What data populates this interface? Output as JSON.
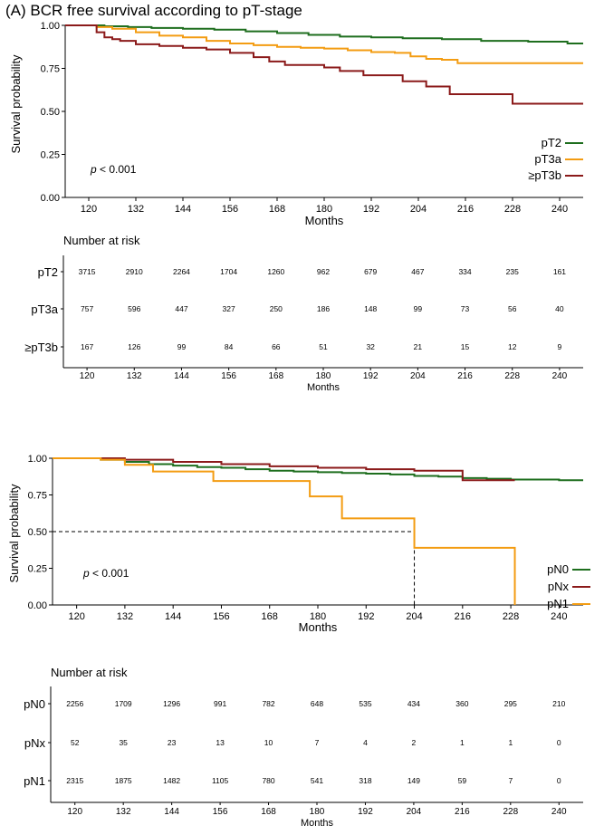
{
  "figure_title": "(A) BCR free survival according to pT-stage",
  "chart_data": [
    {
      "type": "line",
      "step": true,
      "xlabel": "Months",
      "ylabel": "Survival probability",
      "xlim": [
        114,
        246
      ],
      "xticks": [
        120,
        132,
        144,
        156,
        168,
        180,
        192,
        204,
        216,
        228,
        240
      ],
      "ylim": [
        0,
        1
      ],
      "yticks": [
        "0.00",
        "0.25",
        "0.50",
        "0.75",
        "1.00"
      ],
      "annotation": {
        "p_symbol": "p",
        "p_text": " < 0.001"
      },
      "legend_position": "bottom-right",
      "series": [
        {
          "name": "pT2",
          "color": "#1e6e1e",
          "x": [
            114,
            120,
            124,
            130,
            136,
            144,
            152,
            160,
            168,
            176,
            184,
            192,
            200,
            210,
            220,
            232,
            242,
            246
          ],
          "y": [
            1.0,
            1.0,
            0.995,
            0.99,
            0.985,
            0.98,
            0.975,
            0.965,
            0.955,
            0.945,
            0.935,
            0.93,
            0.925,
            0.92,
            0.91,
            0.905,
            0.895,
            0.895
          ]
        },
        {
          "name": "pT3a",
          "color": "#f39c12",
          "x": [
            114,
            120,
            122,
            126,
            132,
            138,
            144,
            150,
            156,
            162,
            168,
            174,
            180,
            186,
            192,
            198,
            202,
            206,
            210,
            214,
            246
          ],
          "y": [
            1.0,
            1.0,
            0.99,
            0.98,
            0.96,
            0.94,
            0.93,
            0.91,
            0.895,
            0.885,
            0.875,
            0.87,
            0.865,
            0.855,
            0.845,
            0.84,
            0.82,
            0.805,
            0.8,
            0.78,
            0.78
          ]
        },
        {
          "name": "≥pT3b",
          "color": "#8b1a1a",
          "x": [
            114,
            120,
            122,
            124,
            126,
            128,
            132,
            138,
            144,
            150,
            156,
            162,
            166,
            170,
            180,
            184,
            190,
            200,
            206,
            212,
            228,
            246
          ],
          "y": [
            1.0,
            1.0,
            0.96,
            0.93,
            0.92,
            0.91,
            0.89,
            0.88,
            0.87,
            0.86,
            0.84,
            0.815,
            0.79,
            0.77,
            0.755,
            0.735,
            0.71,
            0.675,
            0.645,
            0.6,
            0.545,
            0.545
          ]
        }
      ],
      "risk_table": {
        "title": "Number at risk",
        "xlabel": "Months",
        "rows": [
          {
            "label": "pT2",
            "values": [
              "3715",
              "2910",
              "2264",
              "1704",
              "1260",
              "962",
              "679",
              "467",
              "334",
              "235",
              "161"
            ]
          },
          {
            "label": "pT3a",
            "values": [
              "757",
              "596",
              "447",
              "327",
              "250",
              "186",
              "148",
              "99",
              "73",
              "56",
              "40"
            ]
          },
          {
            "label": "≥pT3b",
            "values": [
              "167",
              "126",
              "99",
              "84",
              "66",
              "51",
              "32",
              "21",
              "15",
              "12",
              "9"
            ]
          }
        ]
      }
    },
    {
      "type": "line",
      "step": true,
      "xlabel": "Months",
      "ylabel": "Survival probability",
      "xlim": [
        114,
        246
      ],
      "xticks": [
        120,
        132,
        144,
        156,
        168,
        180,
        192,
        204,
        216,
        228,
        240
      ],
      "ylim": [
        0,
        1
      ],
      "yticks": [
        "0.00",
        "0.25",
        "0.50",
        "0.75",
        "1.00"
      ],
      "annotation": {
        "p_symbol": "p",
        "p_text": " < 0.001"
      },
      "legend_position": "bottom-right",
      "median_line": {
        "y": 0.5,
        "x": 204
      },
      "series": [
        {
          "name": "pN0",
          "color": "#1e6e1e",
          "x": [
            114,
            120,
            126,
            132,
            138,
            144,
            150,
            156,
            162,
            168,
            174,
            180,
            186,
            192,
            198,
            204,
            210,
            216,
            222,
            228,
            234,
            240,
            246
          ],
          "y": [
            1.0,
            1.0,
            0.99,
            0.975,
            0.96,
            0.95,
            0.94,
            0.935,
            0.925,
            0.915,
            0.91,
            0.905,
            0.9,
            0.895,
            0.89,
            0.88,
            0.875,
            0.865,
            0.86,
            0.855,
            0.855,
            0.85,
            0.85
          ]
        },
        {
          "name": "pNx",
          "color": "#8b1a1a",
          "x": [
            114,
            120,
            132,
            144,
            156,
            168,
            180,
            192,
            204,
            216,
            229
          ],
          "y": [
            1.0,
            1.0,
            0.99,
            0.975,
            0.96,
            0.945,
            0.935,
            0.925,
            0.915,
            0.85,
            0.85
          ]
        },
        {
          "name": "pN1",
          "color": "#f39c12",
          "x": [
            114,
            120,
            126,
            132,
            139,
            154,
            178,
            186,
            204,
            229
          ],
          "y": [
            1.0,
            1.0,
            0.99,
            0.955,
            0.91,
            0.845,
            0.74,
            0.59,
            0.39,
            0.0
          ]
        }
      ],
      "risk_table": {
        "title": "Number at risk",
        "xlabel": "Months",
        "rows": [
          {
            "label": "pN0",
            "values": [
              "2256",
              "1709",
              "1296",
              "991",
              "782",
              "648",
              "535",
              "434",
              "360",
              "295",
              "210"
            ]
          },
          {
            "label": "pNx",
            "values": [
              "52",
              "35",
              "23",
              "13",
              "10",
              "7",
              "4",
              "2",
              "1",
              "1",
              "0"
            ]
          },
          {
            "label": "pN1",
            "values": [
              "2315",
              "1875",
              "1482",
              "1105",
              "780",
              "541",
              "318",
              "149",
              "59",
              "7",
              "0"
            ]
          }
        ]
      }
    }
  ]
}
